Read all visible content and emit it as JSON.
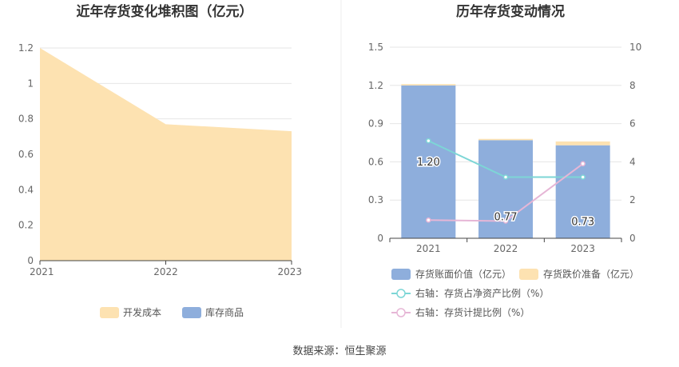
{
  "footer": {
    "source": "数据来源：恒生聚源"
  },
  "chart_data": [
    {
      "type": "area",
      "title": "近年存货变化堆积图（亿元）",
      "x": [
        "2021",
        "2022",
        "2023"
      ],
      "ylim": [
        0,
        1.2
      ],
      "yticks": [
        "0",
        "0.2",
        "0.4",
        "0.6",
        "0.8",
        "1",
        "1.2"
      ],
      "stacked": true,
      "grid": true,
      "legend_position": "bottom",
      "series": [
        {
          "name": "开发成本",
          "values": [
            1.2,
            0.77,
            0.73
          ],
          "color": "#fde2b1"
        },
        {
          "name": "库存商品",
          "values": [
            0,
            0,
            0
          ],
          "color": "#8eaedc"
        }
      ]
    },
    {
      "type": "bar",
      "title": "历年存货变动情况",
      "categories": [
        "2021",
        "2022",
        "2023"
      ],
      "ylim": [
        0,
        1.5
      ],
      "yticks": [
        "0",
        "0.3",
        "0.6",
        "0.9",
        "1.2",
        "1.5"
      ],
      "y2lim": [
        0,
        10
      ],
      "y2ticks": [
        "0",
        "2",
        "4",
        "6",
        "8",
        "10"
      ],
      "stacked": true,
      "grid": true,
      "legend_position": "bottom",
      "series": [
        {
          "name": "存货账面价值（亿元）",
          "values": [
            1.2,
            0.77,
            0.73
          ],
          "labels": [
            "1.20",
            "0.77",
            "0.73"
          ],
          "color": "#8eaedc",
          "kind": "bar"
        },
        {
          "name": "存货跌价准备（亿元）",
          "values": [
            0.01,
            0.01,
            0.03
          ],
          "color": "#fde2b1",
          "kind": "bar"
        },
        {
          "name": "右轴：存货占净资产比例（%）",
          "values": [
            5.1,
            3.2,
            3.2
          ],
          "color": "#7dd6d6",
          "kind": "line",
          "axis": "right"
        },
        {
          "name": "右轴：存货计提比例（%）",
          "values": [
            0.95,
            0.9,
            3.9
          ],
          "color": "#e6b6d6",
          "kind": "line",
          "axis": "right"
        }
      ]
    }
  ]
}
